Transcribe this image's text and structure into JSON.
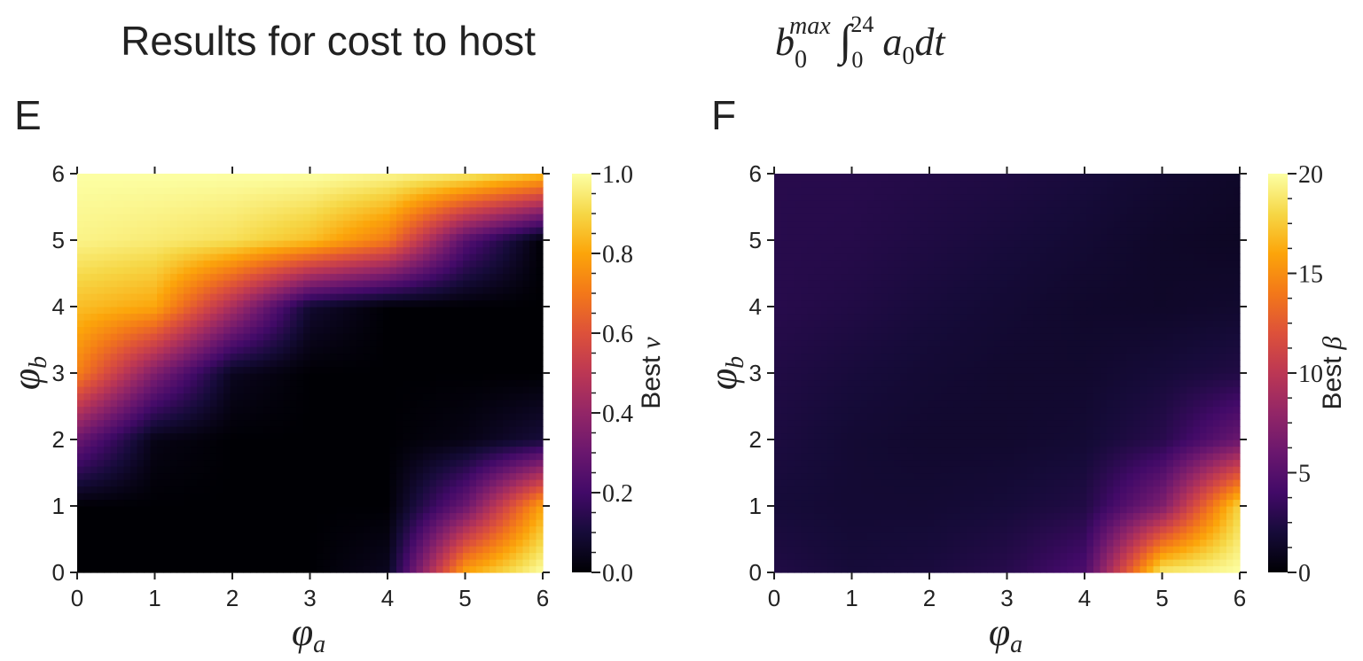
{
  "figure": {
    "title_text": "Results for cost to host",
    "title_math": {
      "base": "b",
      "sub": "0",
      "sup": "max",
      "integral": "∫",
      "int_lower": "0",
      "int_upper": "24",
      "integrand_base": "a",
      "integrand_sub": "0",
      "differential": "dt"
    }
  },
  "chart_data": [
    {
      "type": "heatmap",
      "panel_label": "E",
      "x_label": "φa",
      "x_label_parts": {
        "symbol": "φ",
        "sub": "a"
      },
      "y_label": "φb",
      "y_label_parts": {
        "symbol": "φ",
        "sub": "b"
      },
      "xlim": [
        0,
        6
      ],
      "ylim": [
        0,
        6
      ],
      "x_ticks": [
        "0",
        "1",
        "2",
        "3",
        "4",
        "5",
        "6"
      ],
      "y_ticks": [
        "0",
        "1",
        "2",
        "3",
        "4",
        "5",
        "6"
      ],
      "colormap": "inferno",
      "colorbar_label": "Best ν",
      "colorbar_label_parts": {
        "text": "Best",
        "symbol": "ν"
      },
      "colorbar_range": [
        0.0,
        1.0
      ],
      "colorbar_ticks": [
        "0.0",
        "0.2",
        "0.4",
        "0.6",
        "0.8",
        "1.0"
      ],
      "grid_size": 7,
      "z": [
        [
          0.0,
          0.0,
          0.0,
          0.0,
          0.05,
          0.8,
          1.0
        ],
        [
          0.0,
          0.0,
          0.0,
          0.0,
          0.0,
          0.3,
          0.8
        ],
        [
          0.3,
          0.03,
          0.0,
          0.0,
          0.0,
          0.03,
          0.1
        ],
        [
          0.72,
          0.35,
          0.05,
          0.0,
          0.0,
          0.0,
          0.0
        ],
        [
          0.85,
          0.8,
          0.45,
          0.08,
          0.0,
          0.0,
          0.0
        ],
        [
          0.97,
          0.95,
          0.92,
          0.85,
          0.7,
          0.25,
          0.0
        ],
        [
          1.0,
          1.0,
          1.0,
          1.0,
          0.98,
          0.95,
          0.85
        ]
      ]
    },
    {
      "type": "heatmap",
      "panel_label": "F",
      "x_label": "φa",
      "x_label_parts": {
        "symbol": "φ",
        "sub": "a"
      },
      "y_label": "φb",
      "y_label_parts": {
        "symbol": "φ",
        "sub": "b"
      },
      "xlim": [
        0,
        6
      ],
      "ylim": [
        0,
        6
      ],
      "x_ticks": [
        "0",
        "1",
        "2",
        "3",
        "4",
        "5",
        "6"
      ],
      "y_ticks": [
        "0",
        "1",
        "2",
        "3",
        "4",
        "5",
        "6"
      ],
      "colormap": "inferno",
      "colorbar_label": "Best β",
      "colorbar_label_parts": {
        "text": "Best",
        "symbol": "β"
      },
      "colorbar_range": [
        0,
        20
      ],
      "colorbar_ticks": [
        "0",
        "5",
        "10",
        "15",
        "20"
      ],
      "grid_size": 7,
      "z": [
        [
          2.5,
          2.0,
          2.2,
          2.8,
          4.5,
          19.0,
          20.0
        ],
        [
          2.0,
          1.8,
          1.8,
          2.0,
          2.5,
          7.0,
          18.0
        ],
        [
          2.3,
          1.8,
          1.6,
          1.6,
          1.8,
          2.8,
          6.0
        ],
        [
          2.5,
          2.1,
          1.8,
          1.6,
          1.6,
          2.0,
          2.5
        ],
        [
          2.8,
          2.5,
          2.1,
          1.8,
          1.5,
          1.4,
          1.6
        ],
        [
          2.8,
          2.7,
          2.4,
          2.1,
          1.8,
          1.4,
          1.2
        ],
        [
          2.8,
          2.8,
          2.6,
          2.4,
          2.1,
          1.7,
          1.4
        ]
      ]
    }
  ]
}
